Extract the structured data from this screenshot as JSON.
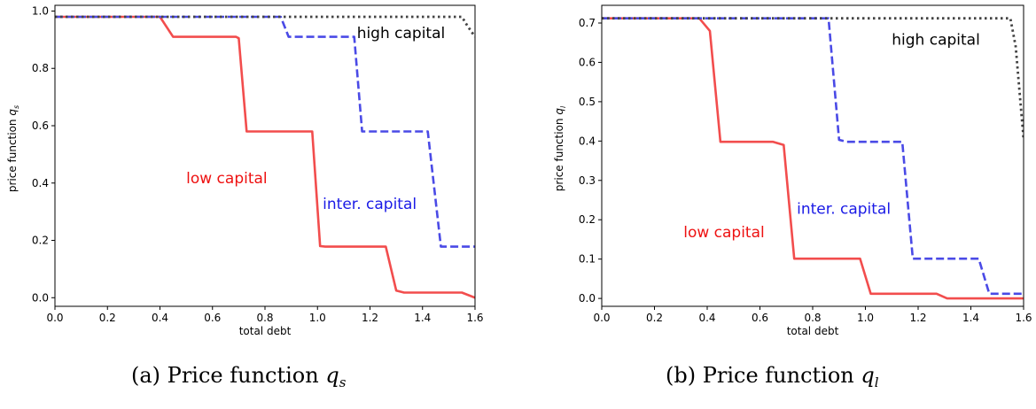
{
  "captions": [
    {
      "text": "(a) Price function ",
      "var": "q",
      "sub": "s"
    },
    {
      "text": "(b) Price function ",
      "var": "q",
      "sub": "l"
    }
  ],
  "chart_data": [
    {
      "type": "line",
      "xlabel": "total debt",
      "ylabel_text": "price function ",
      "ylabel_var": "q",
      "ylabel_sub": "s",
      "xlim": [
        0.0,
        1.6
      ],
      "ylim": [
        -0.03,
        1.02
      ],
      "xticks": [
        0.0,
        0.2,
        0.4,
        0.6,
        0.8,
        1.0,
        1.2,
        1.4,
        1.6
      ],
      "yticks": [
        0.0,
        0.2,
        0.4,
        0.6,
        0.8,
        1.0
      ],
      "grid": false,
      "series": [
        {
          "name": "low capital",
          "color": "#f24d4d",
          "style": "solid",
          "points": [
            [
              0.0,
              0.98
            ],
            [
              0.4,
              0.98
            ],
            [
              0.45,
              0.91
            ],
            [
              0.69,
              0.91
            ],
            [
              0.7,
              0.905
            ],
            [
              0.73,
              0.58
            ],
            [
              0.98,
              0.58
            ],
            [
              1.01,
              0.18
            ],
            [
              1.03,
              0.178
            ],
            [
              1.26,
              0.178
            ],
            [
              1.3,
              0.025
            ],
            [
              1.33,
              0.018
            ],
            [
              1.55,
              0.018
            ],
            [
              1.6,
              0.0
            ]
          ]
        },
        {
          "name": "inter. capital",
          "color": "#4a4ae6",
          "style": "dashed",
          "points": [
            [
              0.0,
              0.98
            ],
            [
              0.86,
              0.98
            ],
            [
              0.89,
              0.91
            ],
            [
              1.14,
              0.91
            ],
            [
              1.17,
              0.58
            ],
            [
              1.42,
              0.58
            ],
            [
              1.47,
              0.178
            ],
            [
              1.6,
              0.178
            ]
          ]
        },
        {
          "name": "high capital",
          "color": "#444444",
          "style": "dotted",
          "points": [
            [
              0.0,
              0.98
            ],
            [
              1.55,
              0.98
            ],
            [
              1.57,
              0.95
            ],
            [
              1.6,
              0.91
            ]
          ]
        }
      ],
      "annotations": [
        {
          "text": "high capital",
          "x": 1.15,
          "y": 0.905,
          "color": "#000000"
        },
        {
          "text": "low capital",
          "x": 0.5,
          "y": 0.4,
          "color": "#ee1111"
        },
        {
          "text": "inter. capital",
          "x": 1.02,
          "y": 0.31,
          "color": "#1a1ae6"
        }
      ]
    },
    {
      "type": "line",
      "xlabel": "total debt",
      "ylabel_text": "price function ",
      "ylabel_var": "q",
      "ylabel_sub": "l",
      "xlim": [
        0.0,
        1.6
      ],
      "ylim": [
        -0.02,
        0.745
      ],
      "xticks": [
        0.0,
        0.2,
        0.4,
        0.6,
        0.8,
        1.0,
        1.2,
        1.4,
        1.6
      ],
      "yticks": [
        0.0,
        0.1,
        0.2,
        0.3,
        0.4,
        0.5,
        0.6,
        0.7
      ],
      "grid": false,
      "series": [
        {
          "name": "low capital",
          "color": "#f24d4d",
          "style": "solid",
          "points": [
            [
              0.0,
              0.712
            ],
            [
              0.37,
              0.712
            ],
            [
              0.41,
              0.68
            ],
            [
              0.45,
              0.398
            ],
            [
              0.65,
              0.398
            ],
            [
              0.69,
              0.39
            ],
            [
              0.73,
              0.101
            ],
            [
              0.98,
              0.101
            ],
            [
              1.02,
              0.012
            ],
            [
              1.27,
              0.012
            ],
            [
              1.31,
              0.0
            ],
            [
              1.6,
              0.0
            ]
          ]
        },
        {
          "name": "inter. capital",
          "color": "#4a4ae6",
          "style": "dashed",
          "points": [
            [
              0.0,
              0.712
            ],
            [
              0.86,
              0.712
            ],
            [
              0.9,
              0.403
            ],
            [
              0.93,
              0.398
            ],
            [
              1.14,
              0.398
            ],
            [
              1.18,
              0.101
            ],
            [
              1.43,
              0.101
            ],
            [
              1.47,
              0.012
            ],
            [
              1.6,
              0.012
            ]
          ]
        },
        {
          "name": "high capital",
          "color": "#444444",
          "style": "dotted",
          "points": [
            [
              0.0,
              0.712
            ],
            [
              1.55,
              0.712
            ],
            [
              1.57,
              0.64
            ],
            [
              1.6,
              0.405
            ]
          ]
        }
      ],
      "annotations": [
        {
          "text": "high capital",
          "x": 1.1,
          "y": 0.645,
          "color": "#000000"
        },
        {
          "text": "inter. capital",
          "x": 0.74,
          "y": 0.215,
          "color": "#1a1ae6"
        },
        {
          "text": "low capital",
          "x": 0.31,
          "y": 0.155,
          "color": "#ee1111"
        }
      ]
    }
  ]
}
